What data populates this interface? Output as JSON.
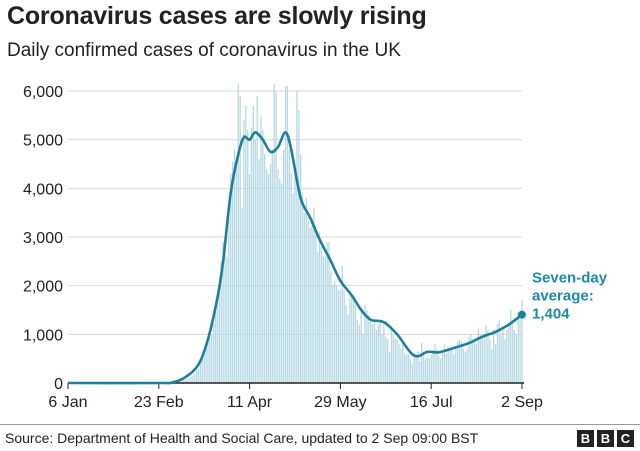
{
  "title": "Coronavirus cases are slowly rising",
  "subtitle": "Daily confirmed cases of coronavirus in the UK",
  "source": "Source: Department of Health and Social Care, updated to 2 Sep 09:00 BST",
  "logo": [
    "B",
    "B",
    "C"
  ],
  "colors": {
    "bars": "#b7d9e3",
    "line": "#1e7f9a",
    "annotation": "#1e8aa3",
    "grid": "#d9d9d9",
    "axis": "#222222"
  },
  "chart_data": {
    "type": "bar",
    "title": "Coronavirus cases are slowly rising",
    "subtitle": "Daily confirmed cases of coronavirus in the UK",
    "xlabel": "",
    "ylabel": "",
    "ylim": [
      0,
      6000
    ],
    "yticks": [
      0,
      1000,
      2000,
      3000,
      4000,
      5000,
      6000
    ],
    "ytick_labels": [
      "0",
      "1,000",
      "2,000",
      "3,000",
      "4,000",
      "5,000",
      "6,000"
    ],
    "x_range": [
      "2020-01-06",
      "2020-09-02"
    ],
    "xticks": [
      {
        "date": "2020-01-06",
        "label": "6 Jan"
      },
      {
        "date": "2020-02-23",
        "label": "23 Feb"
      },
      {
        "date": "2020-04-11",
        "label": "11 Apr"
      },
      {
        "date": "2020-05-29",
        "label": "29 May"
      },
      {
        "date": "2020-07-16",
        "label": "16 Jul"
      },
      {
        "date": "2020-09-02",
        "label": "2 Sep"
      }
    ],
    "grid": true,
    "series": [
      {
        "kind": "daily bars",
        "points": [
          [
            "2020-01-06",
            0
          ],
          [
            "2020-01-20",
            0
          ],
          [
            "2020-02-01",
            2
          ],
          [
            "2020-02-10",
            2
          ],
          [
            "2020-02-20",
            2
          ],
          [
            "2020-02-29",
            8
          ],
          [
            "2020-03-05",
            50
          ],
          [
            "2020-03-08",
            80
          ],
          [
            "2020-03-12",
            140
          ],
          [
            "2020-03-15",
            300
          ],
          [
            "2020-03-18",
            650
          ],
          [
            "2020-03-20",
            900
          ],
          [
            "2020-03-22",
            1000
          ],
          [
            "2020-03-24",
            1450
          ],
          [
            "2020-03-26",
            2100
          ],
          [
            "2020-03-28",
            2900
          ],
          [
            "2020-03-30",
            2600
          ],
          [
            "2020-04-01",
            4300
          ],
          [
            "2020-04-03",
            4800
          ],
          [
            "2020-04-04",
            4500
          ],
          [
            "2020-04-05",
            6150
          ],
          [
            "2020-04-06",
            5900
          ],
          [
            "2020-04-07",
            3600
          ],
          [
            "2020-04-08",
            5400
          ],
          [
            "2020-04-09",
            5700
          ],
          [
            "2020-04-10",
            5200
          ],
          [
            "2020-04-11",
            4300
          ],
          [
            "2020-04-12",
            5250
          ],
          [
            "2020-04-13",
            5700
          ],
          [
            "2020-04-14",
            5000
          ],
          [
            "2020-04-15",
            5900
          ],
          [
            "2020-04-16",
            4600
          ],
          [
            "2020-04-17",
            5500
          ],
          [
            "2020-04-18",
            5200
          ],
          [
            "2020-04-19",
            4700
          ],
          [
            "2020-04-20",
            4400
          ],
          [
            "2020-04-21",
            4300
          ],
          [
            "2020-04-22",
            4500
          ],
          [
            "2020-04-23",
            4800
          ],
          [
            "2020-04-24",
            6150
          ],
          [
            "2020-04-25",
            6000
          ],
          [
            "2020-04-26",
            4400
          ],
          [
            "2020-04-27",
            4200
          ],
          [
            "2020-04-28",
            4100
          ],
          [
            "2020-04-29",
            4800
          ],
          [
            "2020-04-30",
            6100
          ],
          [
            "2020-05-01",
            6100
          ],
          [
            "2020-05-02",
            4800
          ],
          [
            "2020-05-03",
            4300
          ],
          [
            "2020-05-04",
            3900
          ],
          [
            "2020-05-05",
            4400
          ],
          [
            "2020-05-06",
            6000
          ],
          [
            "2020-05-07",
            5600
          ],
          [
            "2020-05-08",
            4700
          ],
          [
            "2020-05-09",
            3900
          ],
          [
            "2020-05-10",
            3500
          ],
          [
            "2020-05-11",
            3800
          ],
          [
            "2020-05-12",
            3400
          ],
          [
            "2020-05-13",
            3200
          ],
          [
            "2020-05-14",
            3400
          ],
          [
            "2020-05-15",
            3600
          ],
          [
            "2020-05-16",
            3100
          ],
          [
            "2020-05-17",
            2700
          ],
          [
            "2020-05-18",
            3100
          ],
          [
            "2020-05-19",
            2800
          ],
          [
            "2020-05-20",
            2600
          ],
          [
            "2020-05-21",
            2600
          ],
          [
            "2020-05-22",
            2900
          ],
          [
            "2020-05-23",
            2900
          ],
          [
            "2020-05-24",
            2300
          ],
          [
            "2020-05-25",
            2000
          ],
          [
            "2020-05-26",
            2100
          ],
          [
            "2020-05-27",
            2000
          ],
          [
            "2020-05-28",
            1900
          ],
          [
            "2020-05-29",
            1900
          ],
          [
            "2020-05-30",
            2400
          ],
          [
            "2020-05-31",
            1900
          ],
          [
            "2020-06-01",
            1600
          ],
          [
            "2020-06-02",
            1400
          ],
          [
            "2020-06-03",
            1900
          ],
          [
            "2020-06-04",
            1800
          ],
          [
            "2020-06-05",
            1700
          ],
          [
            "2020-06-06",
            1600
          ],
          [
            "2020-06-07",
            1300
          ],
          [
            "2020-06-08",
            1200
          ],
          [
            "2020-06-09",
            1500
          ],
          [
            "2020-06-10",
            1000
          ],
          [
            "2020-06-11",
            1600
          ],
          [
            "2020-06-12",
            1500
          ],
          [
            "2020-06-13",
            1400
          ],
          [
            "2020-06-14",
            1300
          ],
          [
            "2020-06-15",
            1200
          ],
          [
            "2020-06-16",
            1300
          ],
          [
            "2020-06-17",
            1100
          ],
          [
            "2020-06-18",
            1200
          ],
          [
            "2020-06-19",
            1300
          ],
          [
            "2020-06-20",
            1000
          ],
          [
            "2020-06-21",
            1200
          ],
          [
            "2020-06-22",
            950
          ],
          [
            "2020-06-23",
            900
          ],
          [
            "2020-06-24",
            650
          ],
          [
            "2020-06-25",
            1100
          ],
          [
            "2020-06-26",
            1000
          ],
          [
            "2020-06-27",
            900
          ],
          [
            "2020-06-28",
            900
          ],
          [
            "2020-06-29",
            800
          ],
          [
            "2020-06-30",
            700
          ],
          [
            "2020-07-01",
            800
          ],
          [
            "2020-07-02",
            600
          ],
          [
            "2020-07-03",
            580
          ],
          [
            "2020-07-04",
            600
          ],
          [
            "2020-07-05",
            500
          ],
          [
            "2020-07-06",
            400
          ],
          [
            "2020-07-07",
            600
          ],
          [
            "2020-07-08",
            550
          ],
          [
            "2020-07-09",
            650
          ],
          [
            "2020-07-10",
            450
          ],
          [
            "2020-07-11",
            820
          ],
          [
            "2020-07-12",
            650
          ],
          [
            "2020-07-13",
            500
          ],
          [
            "2020-07-14",
            550
          ],
          [
            "2020-07-15",
            500
          ],
          [
            "2020-07-16",
            580
          ],
          [
            "2020-07-17",
            680
          ],
          [
            "2020-07-18",
            800
          ],
          [
            "2020-07-19",
            700
          ],
          [
            "2020-07-20",
            560
          ],
          [
            "2020-07-21",
            500
          ],
          [
            "2020-07-22",
            600
          ],
          [
            "2020-07-23",
            800
          ],
          [
            "2020-07-24",
            620
          ],
          [
            "2020-07-25",
            750
          ],
          [
            "2020-07-26",
            700
          ],
          [
            "2020-07-27",
            680
          ],
          [
            "2020-07-28",
            600
          ],
          [
            "2020-07-29",
            750
          ],
          [
            "2020-07-30",
            850
          ],
          [
            "2020-07-31",
            900
          ],
          [
            "2020-08-01",
            850
          ],
          [
            "2020-08-02",
            700
          ],
          [
            "2020-08-03",
            640
          ],
          [
            "2020-08-04",
            700
          ],
          [
            "2020-08-05",
            950
          ],
          [
            "2020-08-06",
            1000
          ],
          [
            "2020-08-07",
            900
          ],
          [
            "2020-08-08",
            850
          ],
          [
            "2020-08-09",
            800
          ],
          [
            "2020-08-10",
            1100
          ],
          [
            "2020-08-11",
            1000
          ],
          [
            "2020-08-12",
            1000
          ],
          [
            "2020-08-13",
            1000
          ],
          [
            "2020-08-14",
            1200
          ],
          [
            "2020-08-15",
            1100
          ],
          [
            "2020-08-16",
            900
          ],
          [
            "2020-08-17",
            700
          ],
          [
            "2020-08-18",
            1100
          ],
          [
            "2020-08-19",
            800
          ],
          [
            "2020-08-20",
            1200
          ],
          [
            "2020-08-21",
            1300
          ],
          [
            "2020-08-22",
            1000
          ],
          [
            "2020-08-23",
            1100
          ],
          [
            "2020-08-24",
            900
          ],
          [
            "2020-08-25",
            1100
          ],
          [
            "2020-08-26",
            1200
          ],
          [
            "2020-08-27",
            1500
          ],
          [
            "2020-08-28",
            1300
          ],
          [
            "2020-08-29",
            1100
          ],
          [
            "2020-08-30",
            1000
          ],
          [
            "2020-08-31",
            1450
          ],
          [
            "2020-09-01",
            1300
          ],
          [
            "2020-09-02",
            1700
          ]
        ]
      },
      {
        "name": "Seven-day average",
        "kind": "line",
        "points": [
          [
            "2020-01-06",
            0
          ],
          [
            "2020-02-23",
            0
          ],
          [
            "2020-03-01",
            10
          ],
          [
            "2020-03-08",
            120
          ],
          [
            "2020-03-15",
            380
          ],
          [
            "2020-03-20",
            900
          ],
          [
            "2020-03-25",
            1750
          ],
          [
            "2020-03-28",
            2500
          ],
          [
            "2020-04-01",
            3900
          ],
          [
            "2020-04-05",
            4700
          ],
          [
            "2020-04-08",
            5050
          ],
          [
            "2020-04-11",
            5000
          ],
          [
            "2020-04-14",
            5150
          ],
          [
            "2020-04-18",
            5000
          ],
          [
            "2020-04-22",
            4750
          ],
          [
            "2020-04-26",
            4850
          ],
          [
            "2020-04-30",
            5150
          ],
          [
            "2020-05-03",
            4800
          ],
          [
            "2020-05-08",
            3800
          ],
          [
            "2020-05-13",
            3400
          ],
          [
            "2020-05-18",
            2950
          ],
          [
            "2020-05-24",
            2500
          ],
          [
            "2020-05-29",
            2100
          ],
          [
            "2020-06-04",
            1800
          ],
          [
            "2020-06-09",
            1500
          ],
          [
            "2020-06-14",
            1300
          ],
          [
            "2020-06-21",
            1250
          ],
          [
            "2020-06-28",
            1000
          ],
          [
            "2020-07-05",
            630
          ],
          [
            "2020-07-09",
            550
          ],
          [
            "2020-07-14",
            640
          ],
          [
            "2020-07-20",
            630
          ],
          [
            "2020-07-28",
            720
          ],
          [
            "2020-08-05",
            820
          ],
          [
            "2020-08-12",
            950
          ],
          [
            "2020-08-19",
            1050
          ],
          [
            "2020-08-26",
            1200
          ],
          [
            "2020-09-02",
            1404
          ]
        ]
      }
    ],
    "annotations": [
      {
        "text_lines": [
          "Seven-day",
          "average:",
          "1,404"
        ],
        "x": "2020-09-02",
        "y": 1404
      }
    ]
  }
}
